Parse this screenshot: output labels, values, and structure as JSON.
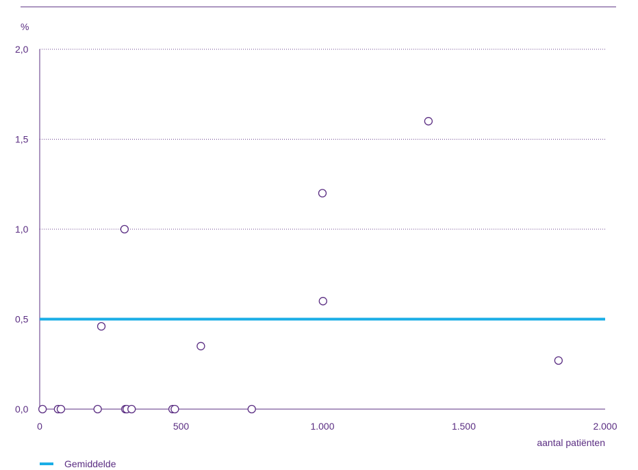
{
  "chart_data": {
    "type": "scatter",
    "xlabel": "aantal patiënten",
    "ylabel": "%",
    "xlim": [
      0,
      2000
    ],
    "ylim": [
      0,
      2.0
    ],
    "x_ticks": [
      {
        "value": 0,
        "label": "0"
      },
      {
        "value": 500,
        "label": "500"
      },
      {
        "value": 1000,
        "label": "1.000"
      },
      {
        "value": 1500,
        "label": "1.500"
      },
      {
        "value": 2000,
        "label": "2.000"
      }
    ],
    "y_ticks": [
      {
        "value": 0.0,
        "label": "0,0"
      },
      {
        "value": 0.5,
        "label": "0,5"
      },
      {
        "value": 1.0,
        "label": "1,0"
      },
      {
        "value": 1.5,
        "label": "1,5"
      },
      {
        "value": 2.0,
        "label": "2,0"
      }
    ],
    "grid": true,
    "points": [
      {
        "x": 10,
        "y": 0.0
      },
      {
        "x": 65,
        "y": 0.0
      },
      {
        "x": 75,
        "y": 0.0
      },
      {
        "x": 205,
        "y": 0.0
      },
      {
        "x": 218,
        "y": 0.46
      },
      {
        "x": 300,
        "y": 1.0
      },
      {
        "x": 303,
        "y": 0.0
      },
      {
        "x": 308,
        "y": 0.0
      },
      {
        "x": 325,
        "y": 0.0
      },
      {
        "x": 470,
        "y": 0.0
      },
      {
        "x": 478,
        "y": 0.0
      },
      {
        "x": 570,
        "y": 0.35
      },
      {
        "x": 750,
        "y": 0.0
      },
      {
        "x": 1000,
        "y": 1.2
      },
      {
        "x": 1002,
        "y": 0.6
      },
      {
        "x": 1375,
        "y": 1.6
      },
      {
        "x": 1835,
        "y": 0.27
      }
    ],
    "average": {
      "name": "Gemiddelde",
      "value": 0.5
    },
    "colors": {
      "marker": "#5a2d82",
      "axis": "#5a2d82",
      "average_line": "#1aaee6",
      "grid": "#5a2d82"
    }
  }
}
